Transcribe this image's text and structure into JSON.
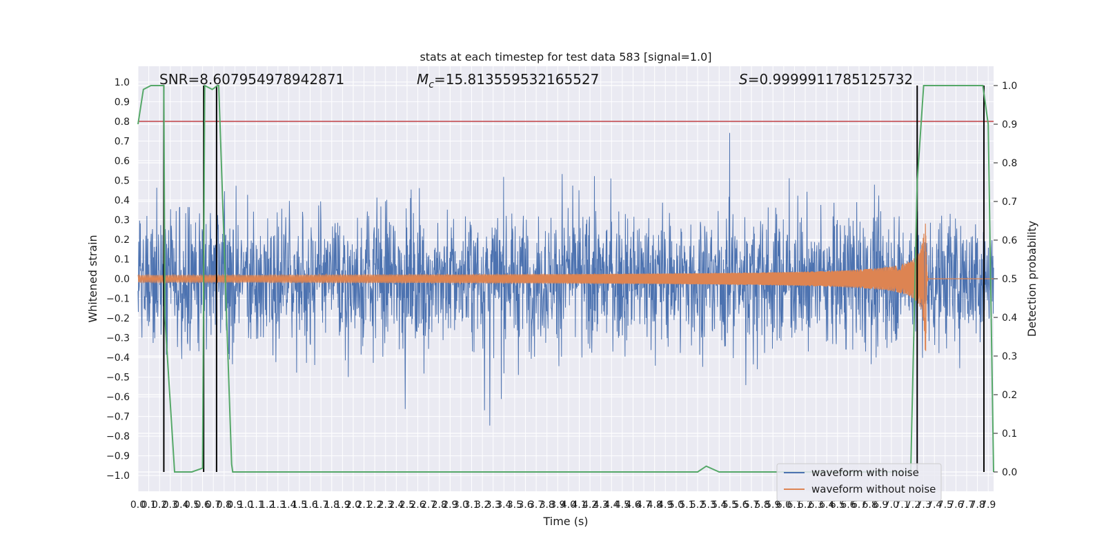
{
  "chart_data": {
    "type": "line",
    "title": "stats at each timestep for test data 583 [signal=1.0]",
    "xlabel": "Time (s)",
    "ylabel_left": "Whitened strain",
    "ylabel_right": "Detection probability",
    "xlim": [
      0.0,
      7.95
    ],
    "ylim_left": [
      -1.08,
      1.08
    ],
    "ylim_right": [
      -0.0,
      1.0
    ],
    "x_ticks": [
      "0.0",
      "0.1",
      "0.2",
      "0.3",
      "0.4",
      "0.5",
      "0.6",
      "0.7",
      "0.8",
      "0.9",
      "1.0",
      "1.1",
      "1.2",
      "1.3",
      "1.4",
      "1.5",
      "1.6",
      "1.7",
      "1.8",
      "1.9",
      "2.0",
      "2.1",
      "2.2",
      "2.3",
      "2.4",
      "2.5",
      "2.6",
      "2.7",
      "2.8",
      "2.9",
      "3.0",
      "3.1",
      "3.2",
      "3.3",
      "3.4",
      "3.5",
      "3.6",
      "3.7",
      "3.8",
      "3.9",
      "4.0",
      "4.1",
      "4.2",
      "4.3",
      "4.4",
      "4.5",
      "4.6",
      "4.7",
      "4.8",
      "4.9",
      "5.0",
      "5.1",
      "5.2",
      "5.3",
      "5.4",
      "5.5",
      "5.6",
      "5.7",
      "5.8",
      "5.9",
      "6.0",
      "6.1",
      "6.2",
      "6.3",
      "6.4",
      "6.5",
      "6.6",
      "6.7",
      "6.8",
      "6.9",
      "7.0",
      "7.1",
      "7.2",
      "7.3",
      "7.4",
      "7.5",
      "7.6",
      "7.7",
      "7.8",
      "7.9"
    ],
    "y_ticks_left": [
      "1.0",
      "0.9",
      "0.8",
      "0.7",
      "0.6",
      "0.5",
      "0.4",
      "0.3",
      "0.2",
      "0.1",
      "0.0",
      "−0.1",
      "−0.2",
      "−0.3",
      "−0.4",
      "−0.5",
      "−0.6",
      "−0.7",
      "−0.8",
      "−0.9",
      "−1.0"
    ],
    "y_ticks_right": [
      "1.0",
      "0.9",
      "0.8",
      "0.7",
      "0.6",
      "0.5",
      "0.4",
      "0.3",
      "0.2",
      "0.1",
      "0.0"
    ],
    "annotations": {
      "snr": "SNR=8.607954978942871",
      "mc": "=15.813559532165527",
      "mc_symbol": "M",
      "mc_sub": "c",
      "s": "=0.9999911785125732",
      "s_symbol": "S"
    },
    "threshold": {
      "y": 0.8,
      "color": "#c44e52"
    },
    "vertical_lines_x": [
      0.24,
      0.61,
      0.73,
      7.24,
      7.86
    ],
    "series": [
      {
        "name": "waveform with noise",
        "color": "#4c72b0",
        "style": "noise",
        "std": 0.26
      },
      {
        "name": "waveform without noise",
        "color": "#dd8452",
        "style": "chirp",
        "merger_time": 7.32,
        "peak": 0.42
      },
      {
        "name": "detection-probability",
        "color": "#55a868",
        "axis": "right",
        "x": [
          0.0,
          0.05,
          0.12,
          0.24,
          0.25,
          0.34,
          0.36,
          0.5,
          0.6,
          0.62,
          0.69,
          0.74,
          0.75,
          0.87,
          0.88,
          5.2,
          5.28,
          5.4,
          7.18,
          7.24,
          7.3,
          7.4,
          7.85,
          7.9,
          7.95
        ],
        "y": [
          0.9,
          0.99,
          1.0,
          1.0,
          0.4,
          0.0,
          0.0,
          0.0,
          0.01,
          1.0,
          0.99,
          1.0,
          1.0,
          0.02,
          0.0,
          0.0,
          0.015,
          0.0,
          0.0,
          0.75,
          1.0,
          1.0,
          1.0,
          0.9,
          0.0
        ]
      }
    ],
    "legend": {
      "position": "lower-right",
      "entries": [
        {
          "label": "waveform with noise",
          "color": "#4c72b0"
        },
        {
          "label": "waveform without noise",
          "color": "#dd8452"
        }
      ]
    },
    "grid": true,
    "style": {
      "plot_bg": "#eaeaf2",
      "grid_color": "#ffffff",
      "vline_color": "#000000"
    }
  }
}
